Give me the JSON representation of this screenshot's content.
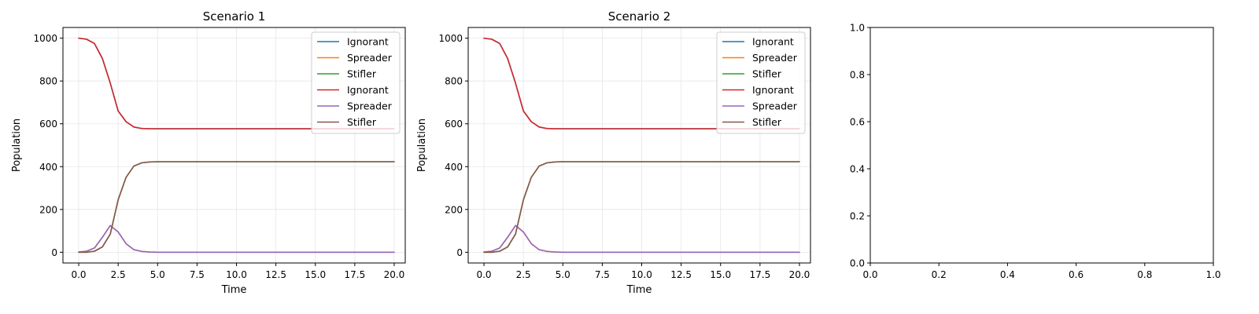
{
  "chart_data": [
    {
      "type": "line",
      "title": "Scenario 1",
      "xlabel": "Time",
      "ylabel": "Population",
      "xlim": [
        -1,
        20.7
      ],
      "ylim": [
        -50,
        1050
      ],
      "xticks": [
        0,
        2.5,
        5,
        7.5,
        10,
        12.5,
        15,
        17.5,
        20
      ],
      "xtick_labels": [
        "0.0",
        "2.5",
        "5.0",
        "7.5",
        "10.0",
        "12.5",
        "15.0",
        "17.5",
        "20.0"
      ],
      "yticks": [
        0,
        200,
        400,
        600,
        800,
        1000
      ],
      "ytick_labels": [
        "0",
        "200",
        "400",
        "600",
        "800",
        "1000"
      ],
      "grid": true,
      "legend_position": "top-right",
      "series": [
        {
          "name": "Ignorant",
          "color": "#1f77b4",
          "x": [
            0,
            0.5,
            1,
            1.5,
            2,
            2.5,
            3,
            3.5,
            4,
            4.5,
            5,
            6,
            8,
            10,
            12,
            14,
            16,
            18,
            20
          ],
          "values": [
            1000,
            995,
            975,
            905,
            790,
            660,
            610,
            585,
            578,
            577,
            577,
            577,
            577,
            577,
            577,
            577,
            577,
            577,
            577
          ]
        },
        {
          "name": "Spreader",
          "color": "#ff7f0e",
          "x": [
            0,
            0.5,
            1,
            1.5,
            2,
            2.5,
            3,
            3.5,
            4,
            4.5,
            5,
            6,
            8,
            10,
            12,
            14,
            16,
            18,
            20
          ],
          "values": [
            1,
            5,
            20,
            70,
            125,
            95,
            40,
            12,
            4,
            1,
            0,
            0,
            0,
            0,
            0,
            0,
            0,
            0,
            0
          ]
        },
        {
          "name": "Stifler",
          "color": "#2ca02c",
          "x": [
            0,
            0.5,
            1,
            1.5,
            2,
            2.5,
            3,
            3.5,
            4,
            4.5,
            5,
            6,
            8,
            10,
            12,
            14,
            16,
            18,
            20
          ],
          "values": [
            0,
            0,
            5,
            25,
            85,
            245,
            350,
            403,
            418,
            422,
            423,
            423,
            423,
            423,
            423,
            423,
            423,
            423,
            423
          ]
        },
        {
          "name": "Ignorant",
          "color": "#d62728",
          "x": [
            0,
            0.5,
            1,
            1.5,
            2,
            2.5,
            3,
            3.5,
            4,
            4.5,
            5,
            6,
            8,
            10,
            12,
            14,
            16,
            18,
            20
          ],
          "values": [
            1000,
            995,
            975,
            905,
            790,
            660,
            610,
            585,
            578,
            577,
            577,
            577,
            577,
            577,
            577,
            577,
            577,
            577,
            577
          ]
        },
        {
          "name": "Spreader",
          "color": "#9467bd",
          "x": [
            0,
            0.5,
            1,
            1.5,
            2,
            2.5,
            3,
            3.5,
            4,
            4.5,
            5,
            6,
            8,
            10,
            12,
            14,
            16,
            18,
            20
          ],
          "values": [
            1,
            5,
            20,
            70,
            125,
            95,
            40,
            12,
            4,
            1,
            0,
            0,
            0,
            0,
            0,
            0,
            0,
            0,
            0
          ]
        },
        {
          "name": "Stifler",
          "color": "#8c564b",
          "x": [
            0,
            0.5,
            1,
            1.5,
            2,
            2.5,
            3,
            3.5,
            4,
            4.5,
            5,
            6,
            8,
            10,
            12,
            14,
            16,
            18,
            20
          ],
          "values": [
            0,
            0,
            5,
            25,
            85,
            245,
            350,
            403,
            418,
            422,
            423,
            423,
            423,
            423,
            423,
            423,
            423,
            423,
            423
          ]
        }
      ]
    },
    {
      "type": "line",
      "title": "Scenario 2",
      "xlabel": "Time",
      "ylabel": "Population",
      "xlim": [
        -1,
        20.7
      ],
      "ylim": [
        -50,
        1050
      ],
      "xticks": [
        0,
        2.5,
        5,
        7.5,
        10,
        12.5,
        15,
        17.5,
        20
      ],
      "xtick_labels": [
        "0.0",
        "2.5",
        "5.0",
        "7.5",
        "10.0",
        "12.5",
        "15.0",
        "17.5",
        "20.0"
      ],
      "yticks": [
        0,
        200,
        400,
        600,
        800,
        1000
      ],
      "ytick_labels": [
        "0",
        "200",
        "400",
        "600",
        "800",
        "1000"
      ],
      "grid": true,
      "legend_position": "top-right",
      "series": [
        {
          "name": "Ignorant",
          "color": "#1f77b4",
          "x": [
            0,
            0.5,
            1,
            1.5,
            2,
            2.5,
            3,
            3.5,
            4,
            4.5,
            5,
            6,
            8,
            10,
            12,
            14,
            16,
            18,
            20
          ],
          "values": [
            1000,
            995,
            975,
            905,
            790,
            660,
            610,
            585,
            578,
            577,
            577,
            577,
            577,
            577,
            577,
            577,
            577,
            577,
            577
          ]
        },
        {
          "name": "Spreader",
          "color": "#ff7f0e",
          "x": [
            0,
            0.5,
            1,
            1.5,
            2,
            2.5,
            3,
            3.5,
            4,
            4.5,
            5,
            6,
            8,
            10,
            12,
            14,
            16,
            18,
            20
          ],
          "values": [
            1,
            5,
            20,
            70,
            125,
            95,
            40,
            12,
            4,
            1,
            0,
            0,
            0,
            0,
            0,
            0,
            0,
            0,
            0
          ]
        },
        {
          "name": "Stifler",
          "color": "#2ca02c",
          "x": [
            0,
            0.5,
            1,
            1.5,
            2,
            2.5,
            3,
            3.5,
            4,
            4.5,
            5,
            6,
            8,
            10,
            12,
            14,
            16,
            18,
            20
          ],
          "values": [
            0,
            0,
            5,
            25,
            85,
            245,
            350,
            403,
            418,
            422,
            423,
            423,
            423,
            423,
            423,
            423,
            423,
            423,
            423
          ]
        },
        {
          "name": "Ignorant",
          "color": "#d62728",
          "x": [
            0,
            0.5,
            1,
            1.5,
            2,
            2.5,
            3,
            3.5,
            4,
            4.5,
            5,
            6,
            8,
            10,
            12,
            14,
            16,
            18,
            20
          ],
          "values": [
            1000,
            995,
            975,
            905,
            790,
            660,
            610,
            585,
            578,
            577,
            577,
            577,
            577,
            577,
            577,
            577,
            577,
            577,
            577
          ]
        },
        {
          "name": "Spreader",
          "color": "#9467bd",
          "x": [
            0,
            0.5,
            1,
            1.5,
            2,
            2.5,
            3,
            3.5,
            4,
            4.5,
            5,
            6,
            8,
            10,
            12,
            14,
            16,
            18,
            20
          ],
          "values": [
            1,
            5,
            20,
            70,
            125,
            95,
            40,
            12,
            4,
            1,
            0,
            0,
            0,
            0,
            0,
            0,
            0,
            0,
            0
          ]
        },
        {
          "name": "Stifler",
          "color": "#8c564b",
          "x": [
            0,
            0.5,
            1,
            1.5,
            2,
            2.5,
            3,
            3.5,
            4,
            4.5,
            5,
            6,
            8,
            10,
            12,
            14,
            16,
            18,
            20
          ],
          "values": [
            0,
            0,
            5,
            25,
            85,
            245,
            350,
            403,
            418,
            422,
            423,
            423,
            423,
            423,
            423,
            423,
            423,
            423,
            423
          ]
        }
      ]
    },
    {
      "type": "line",
      "title": "",
      "xlabel": "",
      "ylabel": "",
      "xlim": [
        0,
        1
      ],
      "ylim": [
        0,
        1
      ],
      "xticks": [
        0,
        0.2,
        0.4,
        0.6,
        0.8,
        1.0
      ],
      "xtick_labels": [
        "0.0",
        "0.2",
        "0.4",
        "0.6",
        "0.8",
        "1.0"
      ],
      "yticks": [
        0,
        0.2,
        0.4,
        0.6,
        0.8,
        1.0
      ],
      "ytick_labels": [
        "0.0",
        "0.2",
        "0.4",
        "0.6",
        "0.8",
        "1.0"
      ],
      "grid": false,
      "series": []
    }
  ]
}
